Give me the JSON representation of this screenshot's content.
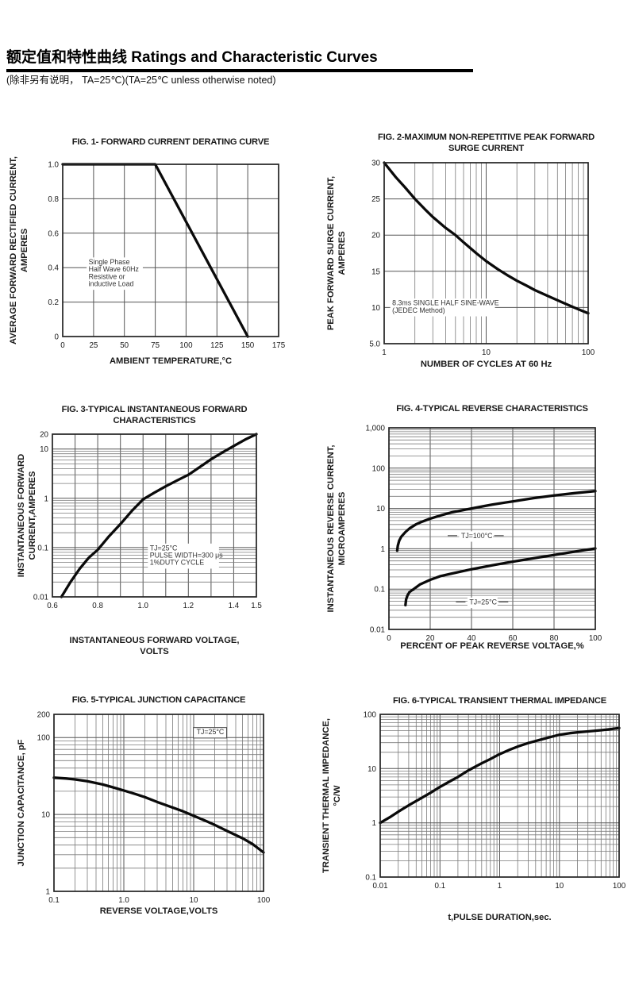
{
  "page": {
    "title": "额定值和特性曲线 Ratings and Characteristic Curves",
    "subtitle": "(除非另有说明， TA=25℃)(TA=25℃  unless otherwise noted)"
  },
  "colors": {
    "curve": "#0a0a0a",
    "grid_major": "#555555",
    "grid_minor": "#7a7a7a",
    "border": "#222222",
    "text": "#1a1a1a",
    "annotation": "#333333",
    "background": "#ffffff"
  },
  "chart_data": [
    {
      "id": "fig1",
      "type": "line",
      "title_lines": [
        "FIG. 1- FORWARD CURRENT DERATING CURVE"
      ],
      "xlabel_lines": [
        "AMBIENT TEMPERATURE,°C"
      ],
      "ylabel_lines": [
        "AVERAGE FORWARD RECTIFIED CURRENT,",
        "AMPERES"
      ],
      "x_axis": {
        "scale": "linear",
        "min": 0,
        "max": 175,
        "grid_step": 25,
        "ticks": [
          [
            0,
            "0"
          ],
          [
            25,
            "25"
          ],
          [
            50,
            "50"
          ],
          [
            75,
            "75"
          ],
          [
            100,
            "100"
          ],
          [
            125,
            "125"
          ],
          [
            150,
            "150"
          ],
          [
            175,
            "175"
          ]
        ]
      },
      "y_axis": {
        "scale": "linear",
        "min": 0,
        "max": 1.0,
        "grid_step": 0.2,
        "ticks": [
          [
            0,
            "0"
          ],
          [
            0.2,
            "0.2"
          ],
          [
            0.4,
            "0.4"
          ],
          [
            0.6,
            "0.6"
          ],
          [
            0.8,
            "0.8"
          ],
          [
            1.0,
            "1.0"
          ]
        ]
      },
      "series": [
        {
          "name": "derating",
          "points": [
            [
              0,
              1.0
            ],
            [
              75,
              1.0
            ],
            [
              150,
              0
            ]
          ]
        }
      ],
      "annotations": [
        {
          "lines": [
            "Single Phase",
            "Half Wave 60Hz",
            "Resistive or",
            "inductive Load"
          ],
          "x": 21,
          "y": 0.42
        }
      ]
    },
    {
      "id": "fig2",
      "type": "line",
      "title_lines": [
        "FIG. 2-MAXIMUM NON-REPETITIVE PEAK FORWARD",
        "SURGE CURRENT"
      ],
      "xlabel_lines": [
        "NUMBER OF CYCLES AT 60 Hz"
      ],
      "ylabel_lines": [
        "PEAK  FORWARD SURGE CURRENT,",
        "AMPERES"
      ],
      "x_axis": {
        "scale": "log",
        "min": 1,
        "max": 100,
        "ticks": [
          [
            1,
            "1"
          ],
          [
            10,
            "10"
          ],
          [
            100,
            "100"
          ]
        ]
      },
      "y_axis": {
        "scale": "linear",
        "min": 5,
        "max": 30,
        "grid_step": 5,
        "ticks": [
          [
            5,
            "5.0"
          ],
          [
            10,
            "10"
          ],
          [
            15,
            "15"
          ],
          [
            20,
            "20"
          ],
          [
            25,
            "25"
          ],
          [
            30,
            "30"
          ]
        ]
      },
      "series": [
        {
          "name": "surge",
          "points": [
            [
              1,
              30
            ],
            [
              1.3,
              28
            ],
            [
              1.6,
              26.6
            ],
            [
              2,
              25
            ],
            [
              2.5,
              23.6
            ],
            [
              3,
              22.5
            ],
            [
              4,
              21
            ],
            [
              5,
              20
            ],
            [
              6,
              19
            ],
            [
              7,
              18.2
            ],
            [
              8,
              17.5
            ],
            [
              10,
              16.4
            ],
            [
              13,
              15.3
            ],
            [
              16,
              14.5
            ],
            [
              20,
              13.7
            ],
            [
              25,
              13
            ],
            [
              30,
              12.4
            ],
            [
              40,
              11.6
            ],
            [
              50,
              11
            ],
            [
              60,
              10.5
            ],
            [
              70,
              10.1
            ],
            [
              85,
              9.6
            ],
            [
              100,
              9.2
            ]
          ]
        }
      ],
      "annotations": [
        {
          "lines": [
            "8.3ms SINGLE HALF SINE-WAVE",
            "(JEDEC Method)"
          ],
          "x": 1.2,
          "y": 10.3
        }
      ]
    },
    {
      "id": "fig3",
      "type": "line",
      "title_lines": [
        "FIG. 3-TYPICAL INSTANTANEOUS FORWARD",
        "CHARACTERISTICS"
      ],
      "xlabel_lines": [
        "INSTANTANEOUS FORWARD VOLTAGE,",
        "VOLTS"
      ],
      "ylabel_lines": [
        "INSTANTANEOUS FORWARD",
        "CURRENT,AMPERES"
      ],
      "x_axis": {
        "scale": "linear",
        "min": 0.6,
        "max": 1.5,
        "grid_step": 0.1,
        "ticks": [
          [
            0.6,
            "0.6"
          ],
          [
            0.8,
            "0.8"
          ],
          [
            1.0,
            "1.0"
          ],
          [
            1.2,
            "1.2"
          ],
          [
            1.4,
            "1.4"
          ],
          [
            1.5,
            "1.5"
          ]
        ]
      },
      "y_axis": {
        "scale": "log",
        "min": 0.01,
        "max": 20,
        "ticks": [
          [
            0.01,
            "0.01"
          ],
          [
            0.1,
            "0.1"
          ],
          [
            1,
            "1"
          ],
          [
            10,
            "10"
          ],
          [
            20,
            "20"
          ]
        ]
      },
      "series": [
        {
          "name": "forward",
          "points": [
            [
              0.64,
              0.01
            ],
            [
              0.68,
              0.02
            ],
            [
              0.72,
              0.037
            ],
            [
              0.76,
              0.062
            ],
            [
              0.8,
              0.09
            ],
            [
              0.85,
              0.17
            ],
            [
              0.9,
              0.3
            ],
            [
              0.95,
              0.55
            ],
            [
              1.0,
              0.95
            ],
            [
              1.05,
              1.3
            ],
            [
              1.1,
              1.75
            ],
            [
              1.15,
              2.3
            ],
            [
              1.2,
              3.0
            ],
            [
              1.25,
              4.3
            ],
            [
              1.3,
              6.2
            ],
            [
              1.35,
              8.5
            ],
            [
              1.4,
              11.5
            ],
            [
              1.45,
              15.5
            ],
            [
              1.5,
              20
            ]
          ]
        }
      ],
      "annotations": [
        {
          "lines": [
            "TJ=25°C",
            "PULSE WIDTH=300 μs",
            "1%DUTY CYCLE"
          ],
          "x": 1.03,
          "y": 0.088
        }
      ]
    },
    {
      "id": "fig4",
      "type": "line",
      "title_lines": [
        "FIG. 4-TYPICAL REVERSE CHARACTERISTICS"
      ],
      "xlabel_lines": [
        "PERCENT OF PEAK REVERSE VOLTAGE,%"
      ],
      "ylabel_lines": [
        "INSTANTANEOUS REVERSE CURRENT,",
        "MICROAMPERES"
      ],
      "x_axis": {
        "scale": "linear",
        "min": 0,
        "max": 100,
        "grid_step": 20,
        "ticks": [
          [
            0,
            "0"
          ],
          [
            20,
            "20"
          ],
          [
            40,
            "40"
          ],
          [
            60,
            "60"
          ],
          [
            80,
            "80"
          ],
          [
            100,
            "100"
          ]
        ]
      },
      "y_axis": {
        "scale": "log",
        "min": 0.01,
        "max": 1000,
        "ticks": [
          [
            0.01,
            "0.01"
          ],
          [
            0.1,
            "0.1"
          ],
          [
            1,
            "1"
          ],
          [
            10,
            "10"
          ],
          [
            100,
            "100"
          ],
          [
            1000,
            "1,000"
          ]
        ]
      },
      "series": [
        {
          "name": "TJ=100C",
          "points": [
            [
              4,
              0.9
            ],
            [
              4.3,
              1.2
            ],
            [
              5,
              1.6
            ],
            [
              6,
              2.0
            ],
            [
              8,
              2.6
            ],
            [
              10,
              3.2
            ],
            [
              13,
              4.0
            ],
            [
              16,
              4.7
            ],
            [
              20,
              5.6
            ],
            [
              25,
              6.7
            ],
            [
              30,
              7.9
            ],
            [
              40,
              10
            ],
            [
              50,
              12.5
            ],
            [
              60,
              15
            ],
            [
              70,
              18
            ],
            [
              80,
              21
            ],
            [
              90,
              24
            ],
            [
              100,
              27
            ]
          ]
        },
        {
          "name": "TJ=25C",
          "points": [
            [
              8,
              0.04
            ],
            [
              8.3,
              0.055
            ],
            [
              9,
              0.07
            ],
            [
              10,
              0.085
            ],
            [
              12,
              0.1
            ],
            [
              15,
              0.13
            ],
            [
              20,
              0.17
            ],
            [
              25,
              0.21
            ],
            [
              30,
              0.24
            ],
            [
              40,
              0.31
            ],
            [
              50,
              0.39
            ],
            [
              60,
              0.48
            ],
            [
              70,
              0.58
            ],
            [
              80,
              0.7
            ],
            [
              90,
              0.85
            ],
            [
              100,
              1.02
            ]
          ]
        }
      ],
      "annotations": [
        {
          "lines": [
            "TJ=100°C"
          ],
          "x": 35,
          "y": 1.85,
          "flank": true
        },
        {
          "lines": [
            "TJ=25°C"
          ],
          "x": 39,
          "y": 0.042,
          "flank": true
        }
      ]
    },
    {
      "id": "fig5",
      "type": "line",
      "title_lines": [
        "FIG. 5-TYPICAL JUNCTION CAPACITANCE"
      ],
      "xlabel_lines": [
        "REVERSE VOLTAGE,VOLTS"
      ],
      "ylabel_lines": [
        "JUNCTION CAPACITANCE, pF"
      ],
      "x_axis": {
        "scale": "log",
        "min": 0.1,
        "max": 100,
        "ticks": [
          [
            0.1,
            "0.1"
          ],
          [
            1,
            "1.0"
          ],
          [
            10,
            "10"
          ],
          [
            100,
            "100"
          ]
        ]
      },
      "y_axis": {
        "scale": "log",
        "min": 1,
        "max": 200,
        "ticks": [
          [
            1,
            "1"
          ],
          [
            10,
            "10"
          ],
          [
            100,
            "100"
          ],
          [
            200,
            "200"
          ]
        ]
      },
      "series": [
        {
          "name": "capacitance",
          "points": [
            [
              0.1,
              30
            ],
            [
              0.15,
              29.3
            ],
            [
              0.2,
              28.5
            ],
            [
              0.3,
              27
            ],
            [
              0.5,
              24.5
            ],
            [
              0.7,
              22.5
            ],
            [
              1,
              20.5
            ],
            [
              1.5,
              18.3
            ],
            [
              2,
              16.8
            ],
            [
              3,
              14.5
            ],
            [
              5,
              12.3
            ],
            [
              7,
              11
            ],
            [
              10,
              9.6
            ],
            [
              15,
              8.2
            ],
            [
              20,
              7.3
            ],
            [
              30,
              6.1
            ],
            [
              50,
              4.9
            ],
            [
              70,
              4.1
            ],
            [
              100,
              3.2
            ]
          ]
        }
      ],
      "annotations": [
        {
          "lines": [
            "TJ=25°C"
          ],
          "x": 11,
          "y": 110,
          "boxed": true
        }
      ]
    },
    {
      "id": "fig6",
      "type": "line",
      "title_lines": [
        "FIG. 6-TYPICAL TRANSIENT THERMAL IMPEDANCE"
      ],
      "xlabel_lines": [
        "t,PULSE DURATION,sec."
      ],
      "ylabel_lines": [
        "TRANSIENT THERMAL IMPEDANCE,",
        "°C/W"
      ],
      "x_axis": {
        "scale": "log",
        "min": 0.01,
        "max": 100,
        "ticks": [
          [
            0.01,
            "0.01"
          ],
          [
            0.1,
            "0.1"
          ],
          [
            1,
            "1"
          ],
          [
            10,
            "10"
          ],
          [
            100,
            "100"
          ]
        ]
      },
      "y_axis": {
        "scale": "log",
        "min": 0.1,
        "max": 100,
        "ticks": [
          [
            0.1,
            "0.1"
          ],
          [
            1,
            "1"
          ],
          [
            10,
            "10"
          ],
          [
            100,
            "100"
          ]
        ]
      },
      "series": [
        {
          "name": "thermal",
          "points": [
            [
              0.01,
              1
            ],
            [
              0.015,
              1.3
            ],
            [
              0.02,
              1.6
            ],
            [
              0.03,
              2.1
            ],
            [
              0.05,
              2.9
            ],
            [
              0.07,
              3.6
            ],
            [
              0.1,
              4.6
            ],
            [
              0.15,
              5.9
            ],
            [
              0.2,
              7
            ],
            [
              0.3,
              9.3
            ],
            [
              0.5,
              12.5
            ],
            [
              0.7,
              15
            ],
            [
              1,
              18.5
            ],
            [
              1.5,
              22.5
            ],
            [
              2,
              25.5
            ],
            [
              3,
              29.5
            ],
            [
              5,
              34.5
            ],
            [
              7,
              38
            ],
            [
              10,
              42
            ],
            [
              15,
              45
            ],
            [
              20,
              46.5
            ],
            [
              30,
              48.5
            ],
            [
              50,
              51
            ],
            [
              70,
              53
            ],
            [
              100,
              56
            ]
          ]
        }
      ],
      "annotations": []
    }
  ]
}
